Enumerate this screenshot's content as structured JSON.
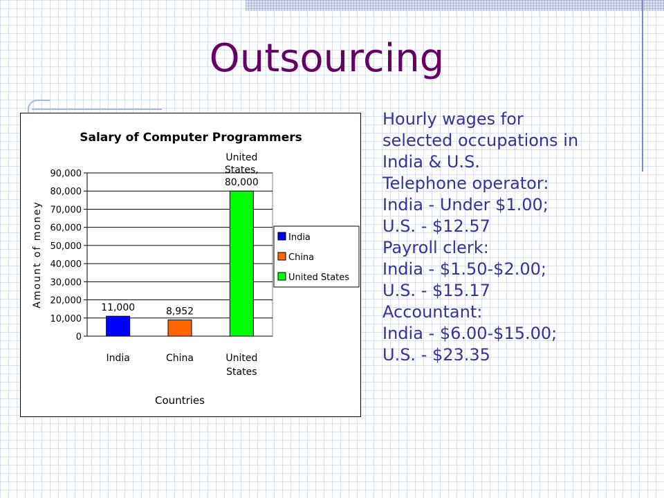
{
  "slide": {
    "title": "Outsourcing"
  },
  "text_panel": {
    "lines": [
      "Hourly wages for",
      "selected occupations in",
      "India & U.S.",
      "Telephone operator:",
      "India - Under $1.00;",
      "U.S. - $12.57",
      "Payroll clerk:",
      "India - $1.50-$2.00;",
      "U.S. - $15.17",
      "Accountant:",
      "India - $6.00-$15.00;",
      "U.S. - $23.35"
    ]
  },
  "colors": {
    "title": "#660066",
    "body_text": "#333399",
    "india": "#0000ff",
    "china": "#ff6600",
    "united_states": "#00ff00"
  },
  "chart_data": {
    "type": "bar",
    "title": "Salary of Computer Programmers",
    "xlabel": "Countries",
    "ylabel": "Amount of money",
    "ylim": [
      0,
      90000
    ],
    "ytick_step": 10000,
    "ytick_labels": [
      "0",
      "10,000",
      "20,000",
      "30,000",
      "40,000",
      "50,000",
      "60,000",
      "70,000",
      "80,000",
      "90,000"
    ],
    "grid": true,
    "legend_position": "right",
    "categories": [
      {
        "name": "India",
        "label_lines": [
          "India"
        ],
        "value": 11000,
        "data_label_lines": [
          "11,000"
        ],
        "color": "#0000ff",
        "legend": "India"
      },
      {
        "name": "China",
        "label_lines": [
          "China"
        ],
        "value": 8952,
        "data_label_lines": [
          "8,952"
        ],
        "color": "#ff6600",
        "legend": "China"
      },
      {
        "name": "United States",
        "label_lines": [
          "United",
          "States"
        ],
        "value": 80000,
        "data_label_lines": [
          "United",
          "States,",
          "80,000"
        ],
        "color": "#00ff00",
        "legend": "United States"
      }
    ]
  }
}
